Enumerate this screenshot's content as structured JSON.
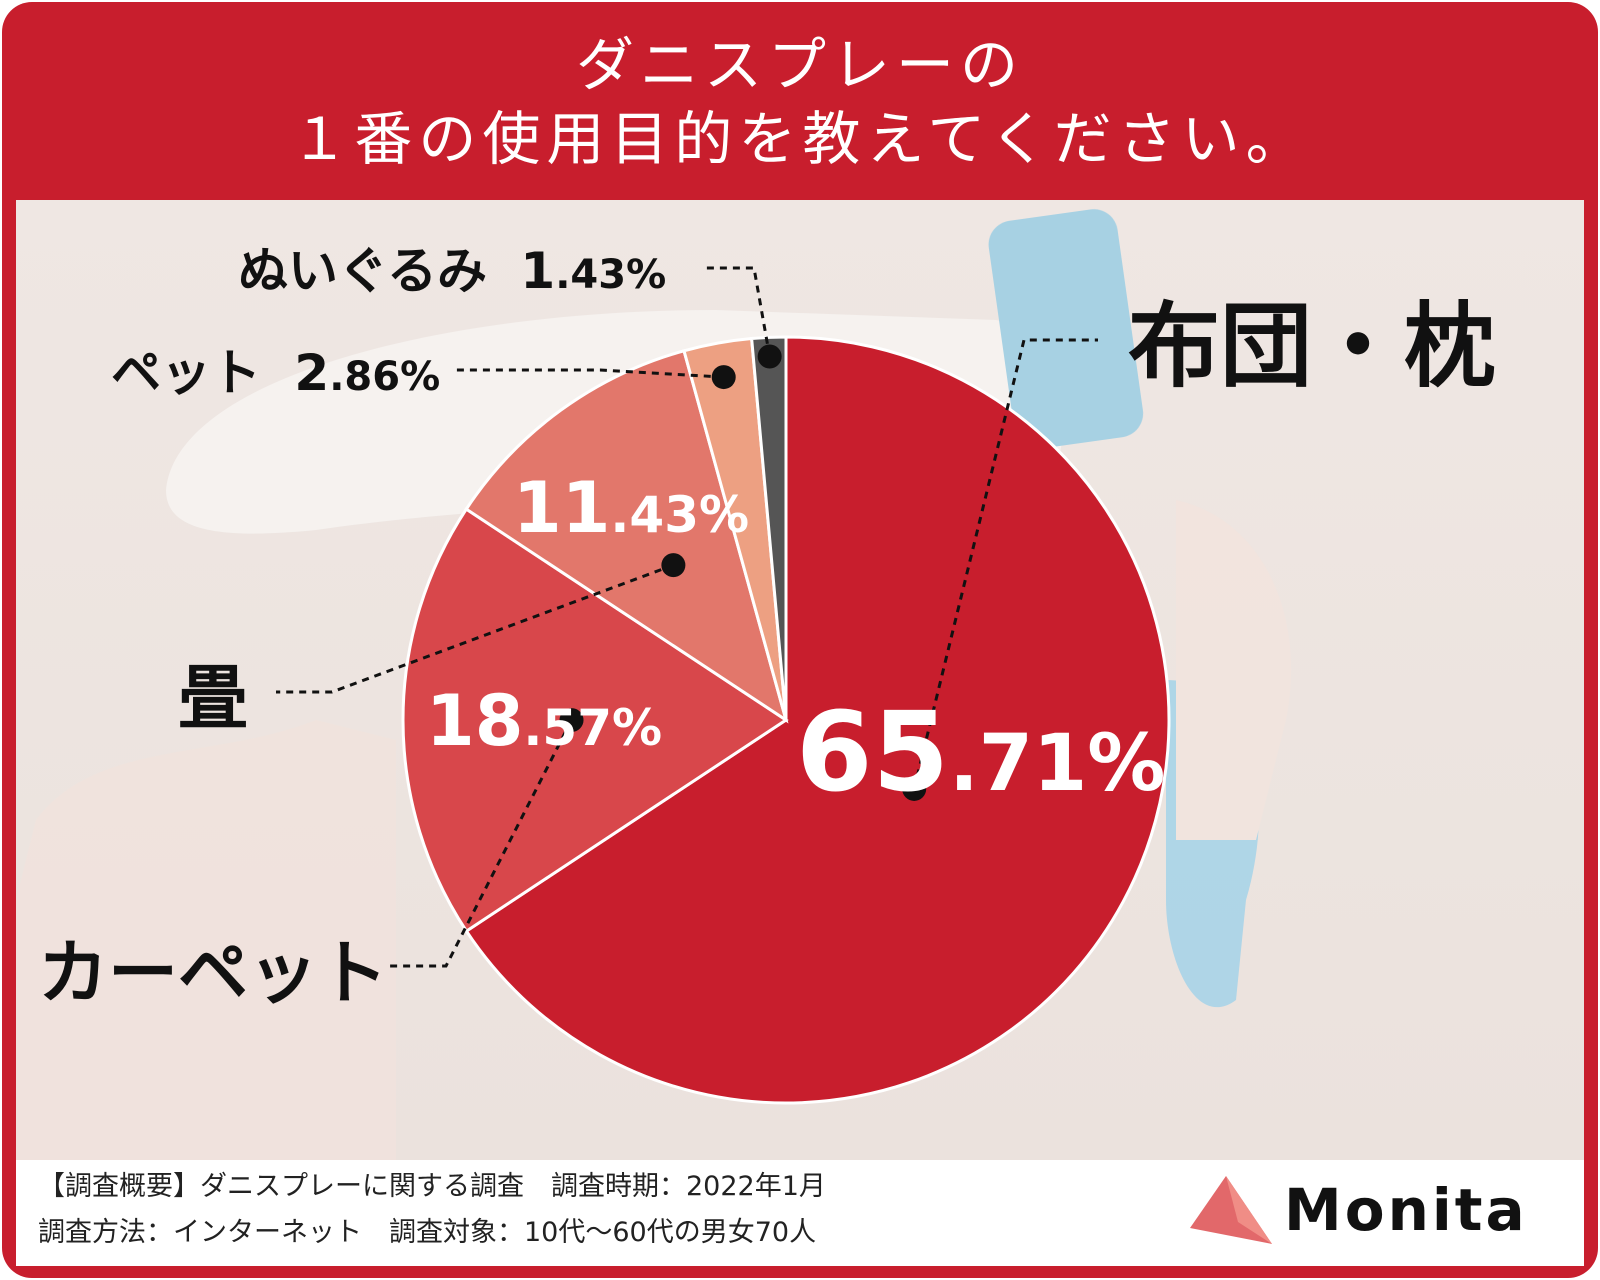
{
  "title_lines": [
    "ダニスプレーの",
    "１番の使用目的を教えてください。"
  ],
  "chart_data": {
    "type": "pie",
    "title": "ダニスプレーの１番の使用目的を教えてください。",
    "categories": [
      "布団・枕",
      "カーペット",
      "畳",
      "ペット",
      "ぬいぐるみ"
    ],
    "values": [
      65.71,
      18.57,
      11.43,
      2.86,
      1.43
    ],
    "value_labels": [
      {
        "int": "65",
        "dec": ".71%"
      },
      {
        "int": "18",
        "dec": ".57%"
      },
      {
        "int": "11",
        "dec": ".43%"
      },
      {
        "int": "2",
        "dec": ".86%"
      },
      {
        "int": "1",
        "dec": ".43%"
      }
    ],
    "colors": [
      "#c81e2d",
      "#d8474b",
      "#e2776b",
      "#eda082",
      "#555555"
    ],
    "start": "12 o'clock",
    "direction": "clockwise"
  },
  "footer": {
    "line1": "【調査概要】ダニスプレーに関する調査　調査時期：2022年1月",
    "line2": "調査方法：インターネット　調査対象：10代〜60代の男女70人"
  },
  "logo": {
    "text": "Monita",
    "mark_color": "#e2686a"
  }
}
